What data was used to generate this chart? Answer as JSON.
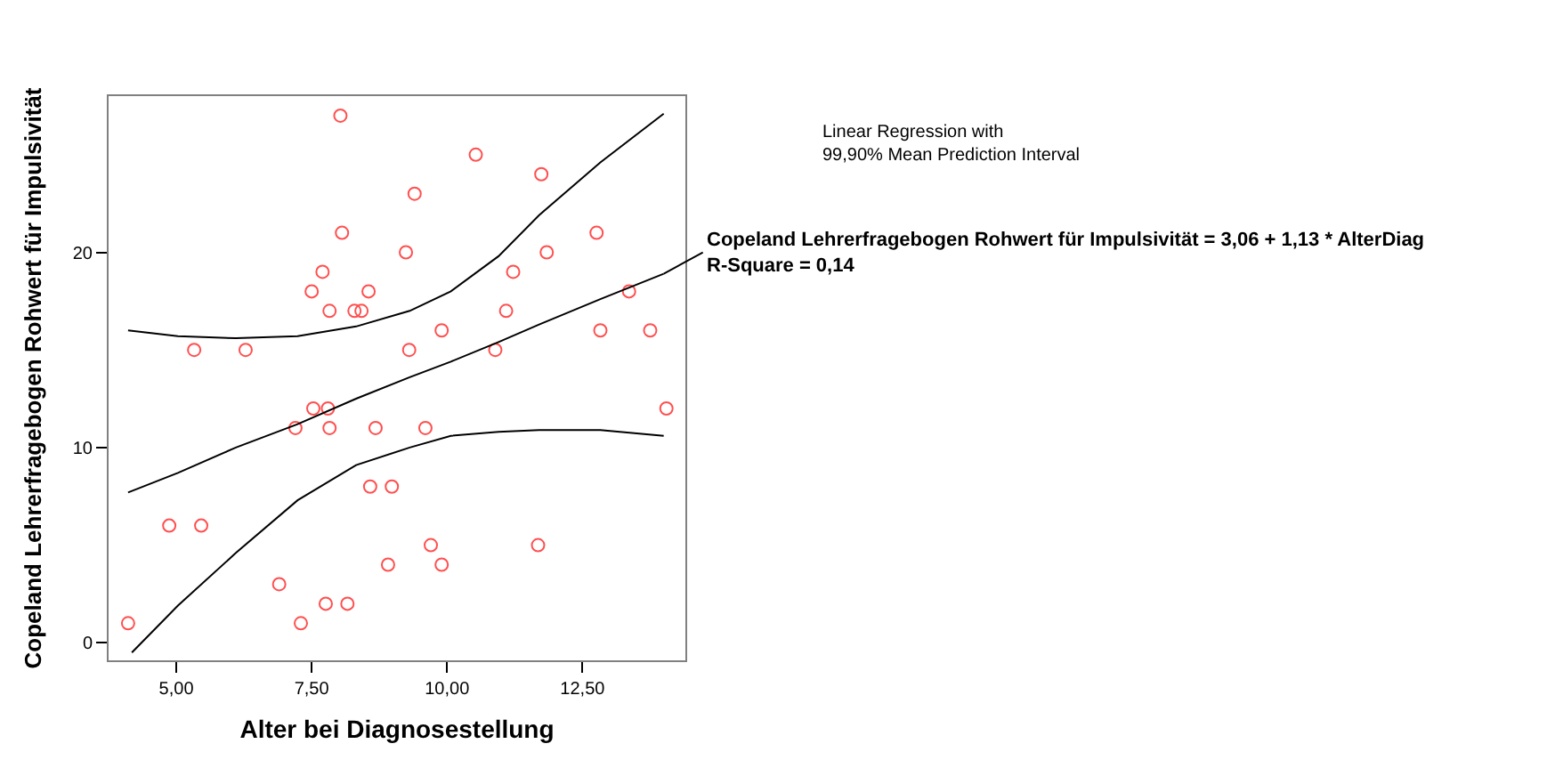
{
  "chart_data": {
    "type": "scatter",
    "xlabel": "Alter bei Diagnosestellung",
    "ylabel": "Copeland Lehrerfragebogen Rohwert für Impulsivität",
    "xlim": [
      3.75,
      14.4
    ],
    "ylim": [
      -0.9,
      28
    ],
    "xticks": [
      {
        "value": 5,
        "label": "5,00"
      },
      {
        "value": 7.5,
        "label": "7,50"
      },
      {
        "value": 10,
        "label": "10,00"
      },
      {
        "value": 12.5,
        "label": "12,50"
      }
    ],
    "yticks": [
      0,
      10,
      20
    ],
    "series": [
      {
        "marker": "circle",
        "color": "#ff5050",
        "x": [
          4.11,
          4.87,
          5.46,
          5.33,
          6.28,
          6.9,
          7.3,
          7.76,
          8.16,
          7.2,
          7.83,
          8.68,
          7.53,
          7.8,
          8.58,
          8.98,
          8.91,
          8.03,
          8.06,
          9.24,
          7.7,
          7.5,
          8.55,
          7.83,
          8.29,
          8.42,
          9.3,
          9.4,
          10.53,
          11.74,
          12.76,
          11.84,
          11.22,
          13.36,
          11.09,
          9.9,
          12.83,
          13.75,
          10.89,
          14.05,
          9.6,
          9.7,
          11.68,
          9.9
        ],
        "values": [
          1,
          6,
          6,
          15,
          15,
          3,
          1,
          2,
          2,
          11,
          11,
          11,
          12,
          12,
          8,
          8,
          4,
          27,
          21,
          20,
          19,
          18,
          18,
          17,
          17,
          17,
          15,
          23,
          25,
          24,
          21,
          20,
          19,
          18,
          17,
          16,
          16,
          16,
          15,
          12,
          11,
          5,
          5,
          4
        ]
      },
      {
        "type": "line",
        "marker": "none",
        "line_style": "solid",
        "color": "#000000",
        "x": [
          4.11,
          5.03,
          6.1,
          7.24,
          8.32,
          9.31,
          10.07,
          10.95,
          11.7,
          12.83,
          14.0
        ],
        "values": [
          7.7,
          8.7,
          10.0,
          11.2,
          12.5,
          13.6,
          14.4,
          15.4,
          16.3,
          17.6,
          18.9
        ]
      },
      {
        "type": "line",
        "marker": "none",
        "line_style": "solid",
        "color": "#000000",
        "x": [
          4.18,
          5.03,
          6.1,
          7.24,
          8.32,
          9.31,
          10.07,
          10.95,
          11.7,
          12.83,
          14.0
        ],
        "values": [
          -0.5,
          1.9,
          4.6,
          7.3,
          9.1,
          10.0,
          10.6,
          10.8,
          10.9,
          10.9,
          10.6
        ]
      },
      {
        "type": "line",
        "marker": "none",
        "line_style": "solid",
        "color": "#000000",
        "x": [
          4.11,
          5.03,
          6.1,
          7.24,
          8.32,
          9.31,
          10.07,
          10.95,
          11.7,
          12.83,
          14.0
        ],
        "values": [
          16.0,
          15.7,
          15.6,
          15.7,
          16.2,
          17.0,
          18.0,
          19.8,
          21.9,
          24.6,
          27.1
        ]
      }
    ],
    "annotations": [
      "Linear Regression with\n99,90% Mean Prediction Interval",
      {
        "text": "Copeland Lehrerfragebogen Rohwert für Impulsivität = 3,06 + 1,13 * AlterDiag\nR-Square = 0,14",
        "x": 14.0,
        "y": 18.9
      }
    ]
  }
}
